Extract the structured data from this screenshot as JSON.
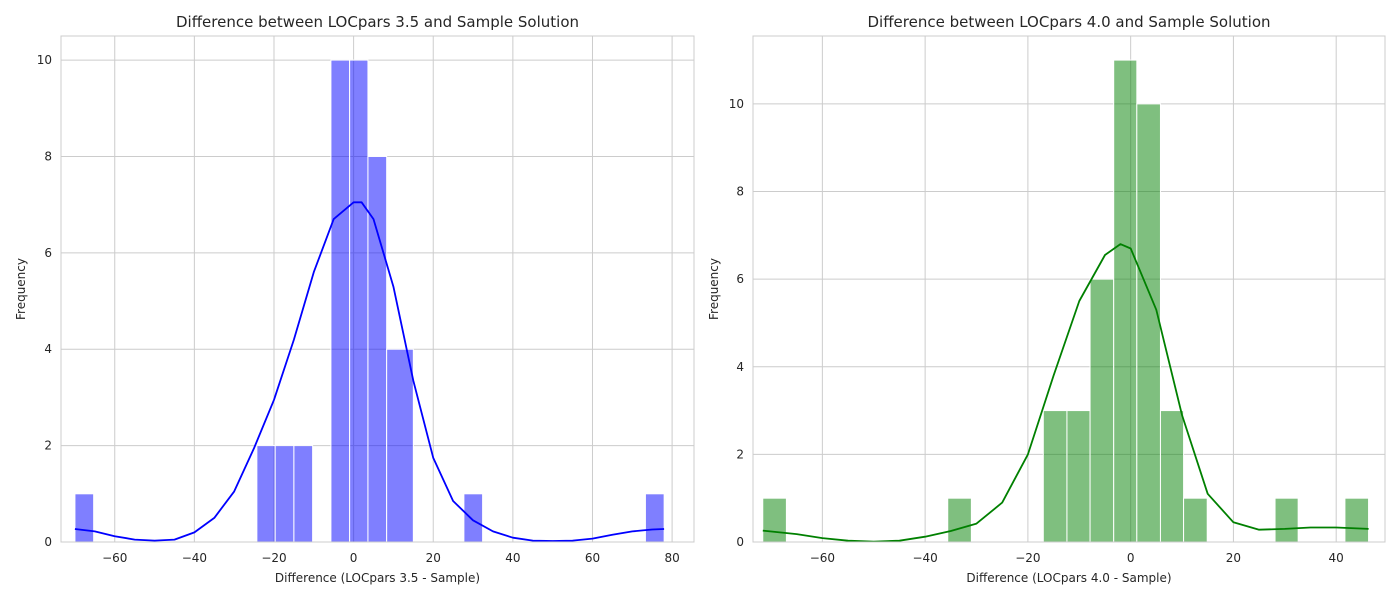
{
  "chart_data": [
    {
      "type": "bar",
      "title": "Difference between LOCpars 3.5 and Sample Solution",
      "xlabel": "Difference (LOCpars 3.5 - Sample)",
      "ylabel": "Frequency",
      "xlim": [
        -73.5,
        85.5
      ],
      "ylim": [
        0,
        10.5
      ],
      "xticks": [
        -60,
        -40,
        -20,
        0,
        20,
        40,
        60,
        80
      ],
      "yticks": [
        0,
        2,
        4,
        6,
        8,
        10
      ],
      "grid": true,
      "bar_color": "#0000ff",
      "kde_color": "#0000ff",
      "bins": [
        {
          "x0": -70.0,
          "x1": -65.3,
          "count": 1
        },
        {
          "x0": -24.3,
          "x1": -19.7,
          "count": 2
        },
        {
          "x0": -19.7,
          "x1": -15.0,
          "count": 2
        },
        {
          "x0": -15.0,
          "x1": -10.3,
          "count": 2
        },
        {
          "x0": -5.7,
          "x1": -1.0,
          "count": 10
        },
        {
          "x0": -1.0,
          "x1": 3.6,
          "count": 10
        },
        {
          "x0": 3.6,
          "x1": 8.3,
          "count": 8
        },
        {
          "x0": 8.3,
          "x1": 15.0,
          "count": 4
        },
        {
          "x0": 27.7,
          "x1": 32.4,
          "count": 1
        },
        {
          "x0": 73.3,
          "x1": 78.0,
          "count": 1
        }
      ],
      "kde": {
        "x": [
          -70,
          -65,
          -60,
          -55,
          -50,
          -45,
          -40,
          -35,
          -30,
          -25,
          -20,
          -15,
          -10,
          -5,
          0,
          2,
          5,
          10,
          15,
          20,
          25,
          30,
          35,
          40,
          45,
          50,
          55,
          60,
          65,
          70,
          75,
          78
        ],
        "y": [
          0.27,
          0.22,
          0.12,
          0.05,
          0.03,
          0.05,
          0.2,
          0.5,
          1.05,
          1.95,
          2.95,
          4.2,
          5.6,
          6.7,
          7.05,
          7.05,
          6.7,
          5.3,
          3.35,
          1.75,
          0.85,
          0.45,
          0.22,
          0.09,
          0.03,
          0.02,
          0.03,
          0.07,
          0.15,
          0.22,
          0.26,
          0.27
        ]
      }
    },
    {
      "type": "bar",
      "title": "Difference between LOCpars 4.0 and Sample Solution",
      "xlabel": "Difference (LOCpars 4.0 - Sample)",
      "ylabel": "Frequency",
      "xlim": [
        -73.5,
        49.5
      ],
      "ylim": [
        0,
        11.55
      ],
      "xticks": [
        -60,
        -40,
        -20,
        0,
        20,
        40
      ],
      "yticks": [
        0,
        2,
        4,
        6,
        8,
        10
      ],
      "grid": true,
      "bar_color": "#008000",
      "kde_color": "#008000",
      "bins": [
        {
          "x0": -71.6,
          "x1": -67.0,
          "count": 1
        },
        {
          "x0": -35.6,
          "x1": -31.0,
          "count": 1
        },
        {
          "x0": -17.0,
          "x1": -12.4,
          "count": 3
        },
        {
          "x0": -12.4,
          "x1": -7.9,
          "count": 3
        },
        {
          "x0": -7.9,
          "x1": -3.3,
          "count": 6
        },
        {
          "x0": -3.3,
          "x1": 1.2,
          "count": 11
        },
        {
          "x0": 1.2,
          "x1": 5.8,
          "count": 10
        },
        {
          "x0": 5.8,
          "x1": 10.3,
          "count": 3
        },
        {
          "x0": 10.3,
          "x1": 14.9,
          "count": 1
        },
        {
          "x0": 28.1,
          "x1": 32.6,
          "count": 1
        },
        {
          "x0": 41.7,
          "x1": 46.3,
          "count": 1
        }
      ],
      "kde": {
        "x": [
          -71.6,
          -65,
          -60,
          -55,
          -50,
          -45,
          -40,
          -35,
          -30,
          -25,
          -20,
          -15,
          -10,
          -5,
          -2,
          0,
          5,
          10,
          15,
          20,
          25,
          30,
          35,
          40,
          46.3
        ],
        "y": [
          0.26,
          0.18,
          0.09,
          0.03,
          0.01,
          0.03,
          0.12,
          0.25,
          0.42,
          0.9,
          2.0,
          3.8,
          5.5,
          6.55,
          6.8,
          6.7,
          5.3,
          2.9,
          1.1,
          0.45,
          0.28,
          0.3,
          0.33,
          0.33,
          0.3
        ]
      }
    }
  ]
}
